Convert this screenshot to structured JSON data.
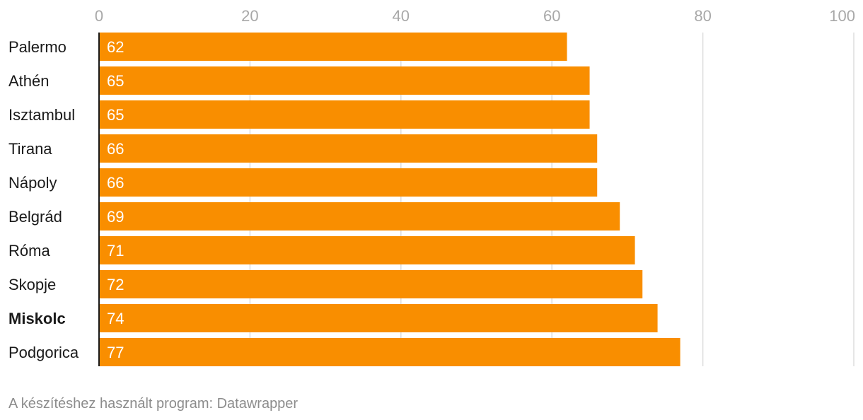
{
  "chart_data": {
    "type": "bar",
    "orientation": "horizontal",
    "categories": [
      "Palermo",
      "Athén",
      "Isztambul",
      "Tirana",
      "Nápoly",
      "Belgrád",
      "Róma",
      "Skopje",
      "Miskolc",
      "Podgorica"
    ],
    "values": [
      62,
      65,
      65,
      66,
      66,
      69,
      71,
      72,
      74,
      77
    ],
    "highlighted_category": "Miskolc",
    "title": "",
    "xlabel": "",
    "ylabel": "",
    "xlim": [
      0,
      100
    ],
    "xticks": [
      0,
      20,
      40,
      60,
      80,
      100
    ],
    "grid": true,
    "bar_color": "#f98e00",
    "value_labels": true
  },
  "footer": {
    "text": "A készítéshez használt program: Datawrapper"
  }
}
